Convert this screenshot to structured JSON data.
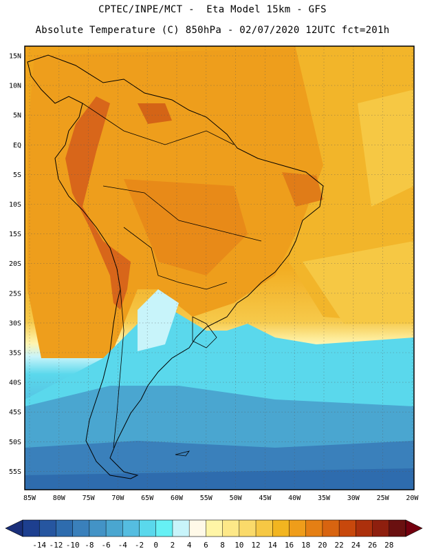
{
  "header": {
    "line1": "CPTEC/INPE/MCT -  Eta Model 15km - GFS",
    "line2": "Absolute Temperature (C) 850hPa - 02/07/2020 12UTC fct=201h"
  },
  "axes": {
    "lat_labels": [
      "15N",
      "10N",
      "5N",
      "EQ",
      "5S",
      "10S",
      "15S",
      "20S",
      "25S",
      "30S",
      "35S",
      "40S",
      "45S",
      "50S",
      "55S"
    ],
    "lon_labels": [
      "85W",
      "80W",
      "75W",
      "70W",
      "65W",
      "60W",
      "55W",
      "50W",
      "45W",
      "40W",
      "35W",
      "30W",
      "25W",
      "20W"
    ]
  },
  "colorbar": {
    "labels": [
      "-14",
      "-12",
      "-10",
      "-8",
      "-6",
      "-4",
      "-2",
      "0",
      "2",
      "4",
      "6",
      "8",
      "10",
      "12",
      "14",
      "16",
      "18",
      "20",
      "22",
      "24",
      "26",
      "28"
    ],
    "colors": [
      "#1d3f8f",
      "#2656a0",
      "#2e6cae",
      "#3a80bb",
      "#4393c6",
      "#4aa6d0",
      "#55bde0",
      "#5ad8ec",
      "#66f0f4",
      "#c8f4fa",
      "#fff9e8",
      "#fff5a6",
      "#fde888",
      "#fada6a",
      "#f6c844",
      "#f2b520",
      "#ef9d1a",
      "#e57f14",
      "#d86410",
      "#c8480c",
      "#ac300c",
      "#8e1f0e",
      "#6a1010"
    ],
    "low_arrow_color": "#1a2f7a",
    "high_arrow_color": "#74000f"
  },
  "colors": {
    "warm_base": "#ee9e1c",
    "ocean_warm": "#f3b82a",
    "hot": "#d35c12",
    "cold_ocean": "#3a94c8"
  }
}
